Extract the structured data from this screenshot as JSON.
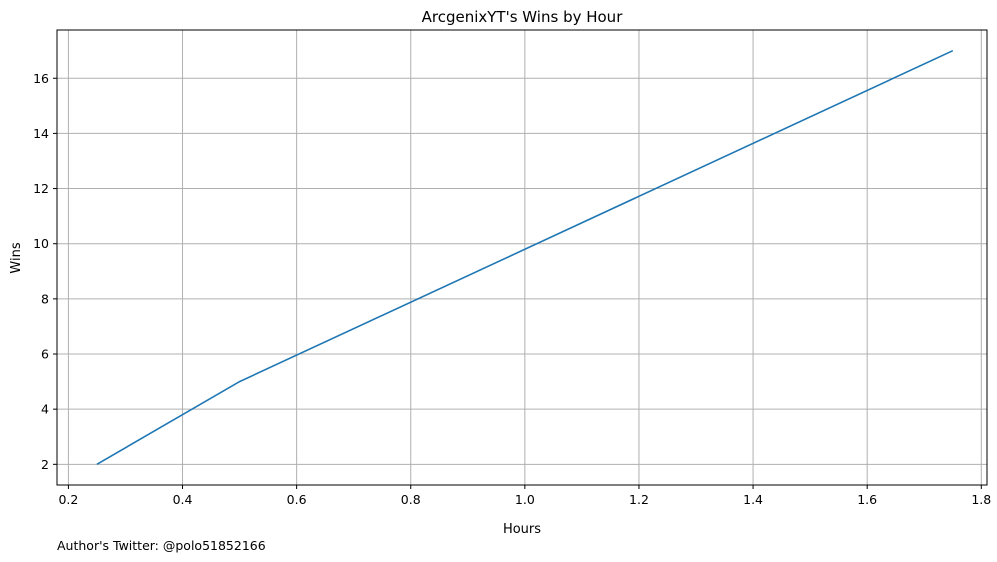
{
  "chart_data": {
    "type": "line",
    "title": "ArcgenixYT's Wins by Hour",
    "xlabel": "Hours",
    "ylabel": "Wins",
    "xlim": [
      0.18,
      1.81
    ],
    "ylim": [
      1.25,
      17.75
    ],
    "x_ticks": [
      0.2,
      0.4,
      0.6,
      0.8,
      1.0,
      1.2,
      1.4,
      1.6,
      1.8
    ],
    "x_tick_labels": [
      "0.2",
      "0.4",
      "0.6",
      "0.8",
      "1.0",
      "1.2",
      "1.4",
      "1.6",
      "1.8"
    ],
    "y_ticks": [
      2,
      4,
      6,
      8,
      10,
      12,
      14,
      16
    ],
    "y_tick_labels": [
      "2",
      "4",
      "6",
      "8",
      "10",
      "12",
      "14",
      "16"
    ],
    "grid": true,
    "series": [
      {
        "color": "#1f77b4",
        "x": [
          0.25,
          0.5,
          1.75
        ],
        "y": [
          2,
          5,
          17
        ]
      }
    ]
  },
  "caption": "Author's Twitter: @polo51852166",
  "colors": {
    "line": "#1f77b4",
    "grid": "#b0b0b0",
    "axes": "#000000"
  }
}
